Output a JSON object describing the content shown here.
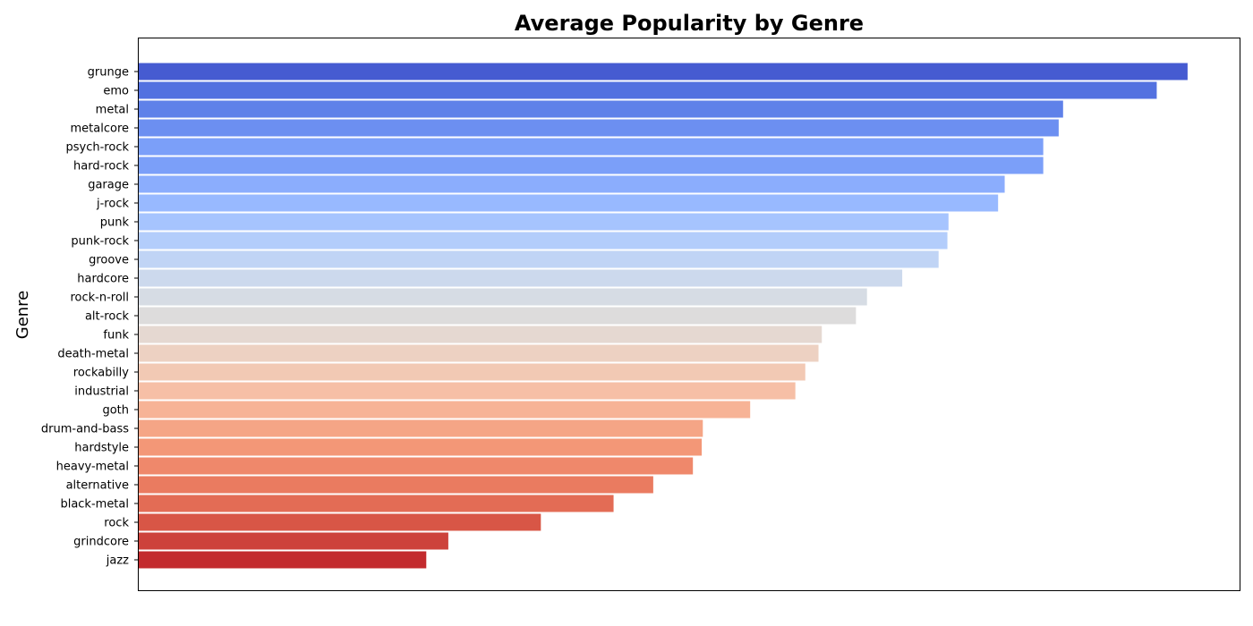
{
  "chart_data": {
    "type": "bar",
    "orientation": "horizontal",
    "title": "Average Popularity by Genre",
    "xlabel": "",
    "ylabel": "Genre",
    "xlim": [
      0,
      1
    ],
    "x_ticks_visible": false,
    "grid": false,
    "legend": "none",
    "categories": [
      "grunge",
      "emo",
      "metal",
      "metalcore",
      "psych-rock",
      "hard-rock",
      "garage",
      "j-rock",
      "punk",
      "punk-rock",
      "groove",
      "hardcore",
      "rock-n-roll",
      "alt-rock",
      "funk",
      "death-metal",
      "rockabilly",
      "industrial",
      "goth",
      "drum-and-bass",
      "hardstyle",
      "heavy-metal",
      "alternative",
      "black-metal",
      "rock",
      "grindcore",
      "jazz"
    ],
    "values": [
      0.952,
      0.924,
      0.839,
      0.835,
      0.821,
      0.821,
      0.786,
      0.78,
      0.735,
      0.734,
      0.726,
      0.693,
      0.661,
      0.651,
      0.62,
      0.617,
      0.605,
      0.596,
      0.555,
      0.512,
      0.511,
      0.503,
      0.467,
      0.431,
      0.365,
      0.281,
      0.261
    ],
    "colors": [
      "#465bd1",
      "#5371e0",
      "#5f81e9",
      "#6c8ff1",
      "#7b9ff9",
      "#7b9ff9",
      "#8badfd",
      "#98b9ff",
      "#a6c4fe",
      "#b3cdfb",
      "#c0d4f5",
      "#ccd9ed",
      "#d6dce4",
      "#dddcdc",
      "#e5d8d1",
      "#edd1c2",
      "#f2c9b4",
      "#f6bfa6",
      "#f7b396",
      "#f5a586",
      "#f39777",
      "#ef886b",
      "#ea7b60",
      "#e36c55",
      "#d85646",
      "#cd423b",
      "#c32b2e"
    ]
  }
}
